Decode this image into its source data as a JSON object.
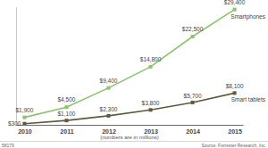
{
  "chart_data": {
    "type": "line",
    "categories": [
      "2010",
      "2011",
      "2012",
      "2013",
      "2014",
      "2015"
    ],
    "series": [
      {
        "name": "Smartphones",
        "color": "#8cc36c",
        "marker": "square",
        "values": [
          1900,
          4500,
          9400,
          14800,
          22500,
          29400
        ],
        "value_labels": [
          "$1,900",
          "$4,500",
          "$9,400",
          "$14,800",
          "$22,500",
          "$29,400"
        ]
      },
      {
        "name": "Smart tablets",
        "color": "#5f5a3c",
        "marker": "square",
        "values": [
          300,
          1100,
          2300,
          3800,
          5700,
          8100
        ],
        "value_labels": [
          "$300",
          "$1,100",
          "$2,300",
          "$3,800",
          "$5,700",
          "$8,100"
        ]
      }
    ],
    "ylim": [
      0,
      30000
    ],
    "data_labels": true,
    "tick_labels": "x",
    "annotations": [
      "(numbers are in millions)",
      "58179",
      "Source: Forrester Research, Inc."
    ]
  }
}
